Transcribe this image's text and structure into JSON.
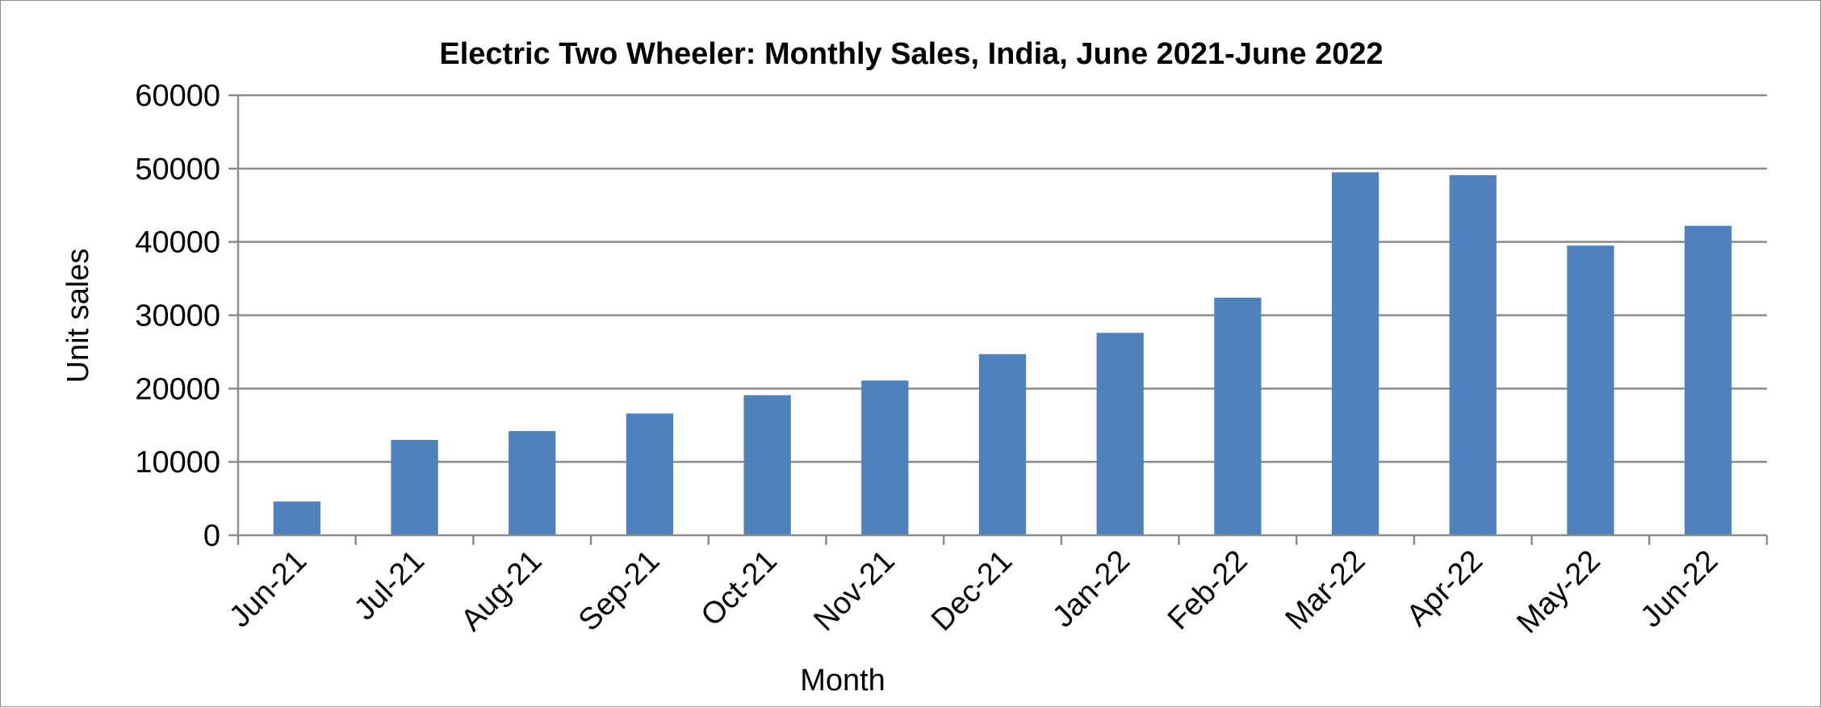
{
  "chart_data": {
    "type": "bar",
    "title": "Electric Two Wheeler: Monthly Sales, India, June 2021-June 2022",
    "xlabel": "Month",
    "ylabel": "Unit sales",
    "categories": [
      "Jun-21",
      "Jul-21",
      "Aug-21",
      "Sep-21",
      "Oct-21",
      "Nov-21",
      "Dec-21",
      "Jan-22",
      "Feb-22",
      "Mar-22",
      "Apr-22",
      "May-22",
      "Jun-22"
    ],
    "values": [
      4600,
      13000,
      14200,
      16600,
      19100,
      21100,
      24700,
      27600,
      32400,
      49500,
      49100,
      39500,
      42200
    ],
    "ylim": [
      0,
      60000
    ],
    "yticks": [
      "0",
      "10000",
      "20000",
      "30000",
      "40000",
      "50000",
      "60000"
    ],
    "grid": true,
    "legend": "none",
    "bar_color": "#4F81BD"
  }
}
